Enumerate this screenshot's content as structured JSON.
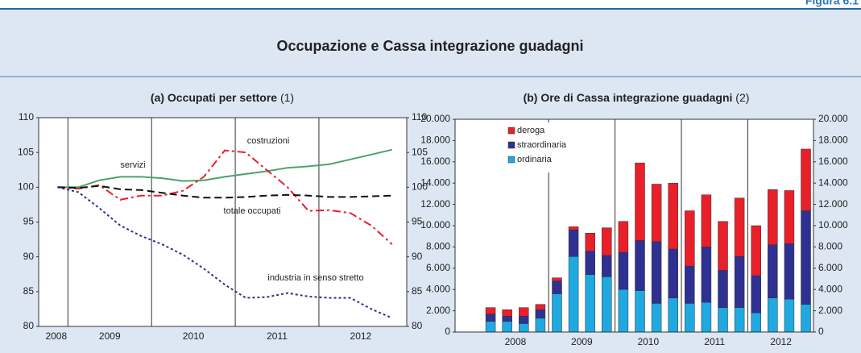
{
  "figure_label": "Figura 6.1",
  "title": "Occupazione e Cassa integrazione guadagni",
  "chart_data": [
    {
      "type": "line",
      "title": "(a) Occupati per settore",
      "title_note": "(1)",
      "x": [
        2008.875,
        2009.125,
        2009.375,
        2009.625,
        2009.875,
        2010.125,
        2010.375,
        2010.625,
        2010.875,
        2011.125,
        2011.375,
        2011.625,
        2011.875,
        2012.125,
        2012.375,
        2012.625,
        2012.875
      ],
      "xlim": [
        2008.65,
        2013.05
      ],
      "xgrid": [
        2009,
        2010,
        2011,
        2012
      ],
      "xticks": [
        {
          "value": 2008.86,
          "label": "2008"
        },
        {
          "value": 2009.5,
          "label": "2009"
        },
        {
          "value": 2010.5,
          "label": "2010"
        },
        {
          "value": 2011.5,
          "label": "2011"
        },
        {
          "value": 2012.5,
          "label": "2012"
        }
      ],
      "ylim": [
        80,
        110
      ],
      "yticks": [
        80,
        85,
        90,
        95,
        100,
        105,
        110
      ],
      "series": [
        {
          "name": "servizi",
          "color": "#4aa36b",
          "linestyle": "solid",
          "values": [
            100,
            100,
            101,
            101.5,
            101.5,
            101.3,
            100.9,
            101,
            101.5,
            101.9,
            102.3,
            102.8,
            103,
            103.3,
            104,
            104.7,
            105.4
          ]
        },
        {
          "name": "costruzioni",
          "color": "#e8202a",
          "linestyle": "dashdot",
          "values": [
            100,
            99.8,
            100.3,
            98.2,
            98.8,
            98.8,
            99.5,
            101.5,
            105.3,
            105,
            102.5,
            100,
            96.6,
            96.7,
            96.3,
            94.5,
            91.8
          ]
        },
        {
          "name": "totale occupati",
          "color": "#111111",
          "linestyle": "dashed",
          "values": [
            100,
            99.9,
            100.2,
            99.7,
            99.6,
            99.2,
            98.8,
            98.5,
            98.5,
            98.6,
            98.8,
            98.9,
            98.8,
            98.6,
            98.6,
            98.7,
            98.8
          ]
        },
        {
          "name": "industria in senso stretto",
          "color": "#2e3192",
          "linestyle": "dotted",
          "values": [
            100,
            99.3,
            97,
            94.5,
            93,
            91.8,
            90.3,
            88.3,
            86,
            84.1,
            84.2,
            84.8,
            84.3,
            84.1,
            84.1,
            82.5,
            81.2
          ]
        }
      ]
    },
    {
      "type": "stacked_bar",
      "title": "(b) Ore di Cassa integrazione guadagni",
      "title_note": "(2)",
      "x": [
        2008.125,
        2008.375,
        2008.625,
        2008.875,
        2009.125,
        2009.375,
        2009.625,
        2009.875,
        2010.125,
        2010.375,
        2010.625,
        2010.875,
        2011.125,
        2011.375,
        2011.625,
        2011.875,
        2012.125,
        2012.375,
        2012.625,
        2012.875
      ],
      "xlim": [
        2007.59,
        2012.99
      ],
      "xgrid": [
        2009,
        2010,
        2011,
        2012
      ],
      "xticks": [
        {
          "value": 2008.5,
          "label": "2008"
        },
        {
          "value": 2009.5,
          "label": "2009"
        },
        {
          "value": 2010.5,
          "label": "2010"
        },
        {
          "value": 2011.5,
          "label": "2011"
        },
        {
          "value": 2012.5,
          "label": "2012"
        }
      ],
      "ylim": [
        0,
        20000
      ],
      "yticks": [
        0,
        {
          "value": 2000,
          "label": "2.000"
        },
        {
          "value": 4000,
          "label": "4.000"
        },
        {
          "value": 6000,
          "label": "6.000"
        },
        {
          "value": 8000,
          "label": "8.000"
        },
        {
          "value": 10000,
          "label": "10.000"
        },
        {
          "value": 12000,
          "label": "12.000"
        },
        {
          "value": 14000,
          "label": "14.000"
        },
        {
          "value": 16000,
          "label": "16.000"
        },
        {
          "value": 18000,
          "label": "18.000"
        },
        {
          "value": 20000,
          "label": "20.000"
        }
      ],
      "legend": "upper left",
      "series": [
        {
          "name": "ordinaria",
          "color": "#1fa9e0",
          "values": [
            1000,
            1000,
            800,
            1300,
            3600,
            7100,
            5400,
            5200,
            4000,
            3900,
            2700,
            3200,
            2700,
            2800,
            2300,
            2300,
            1800,
            3200,
            3100,
            2600
          ]
        },
        {
          "name": "straordinaria",
          "color": "#2e3192",
          "values": [
            700,
            500,
            700,
            800,
            1200,
            2500,
            2200,
            2000,
            3500,
            4700,
            5800,
            4600,
            3500,
            5200,
            3500,
            4800,
            3500,
            5000,
            5200,
            8800
          ]
        },
        {
          "name": "deroga",
          "color": "#e8202a",
          "values": [
            600,
            600,
            800,
            500,
            300,
            300,
            1700,
            2600,
            2900,
            7300,
            5400,
            6200,
            5200,
            4900,
            4600,
            5500,
            4700,
            5200,
            5000,
            5800
          ]
        }
      ]
    }
  ]
}
